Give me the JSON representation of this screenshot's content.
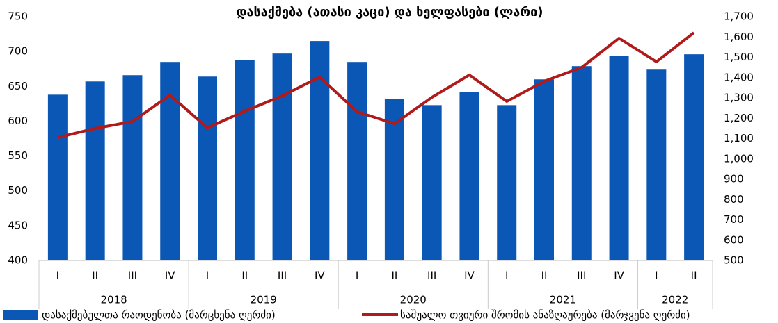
{
  "chart_data": {
    "type": "bar_line",
    "title": "დასაქმება (ათასი კაცი) და ხელფასები (ლარი)",
    "category_groups": [
      {
        "name": "2018",
        "categories": [
          "I",
          "II",
          "III",
          "IV"
        ]
      },
      {
        "name": "2019",
        "categories": [
          "I",
          "II",
          "III",
          "IV"
        ]
      },
      {
        "name": "2020",
        "categories": [
          "I",
          "II",
          "III",
          "IV"
        ]
      },
      {
        "name": "2021",
        "categories": [
          "I",
          "II",
          "III",
          "IV"
        ]
      },
      {
        "name": "2022",
        "categories": [
          "I",
          "II"
        ]
      }
    ],
    "series": [
      {
        "name": "დასაქმებულთა რაოდენობა (მარცხენა ღერძი)",
        "type": "bar",
        "color": "#0b57b5",
        "axis": "y",
        "values": [
          638,
          657,
          666,
          685,
          664,
          688,
          697,
          715,
          685,
          632,
          623,
          642,
          623,
          660,
          679,
          694,
          674,
          696
        ]
      },
      {
        "name": "საშუალო თვიური შრომის ანაზღაურება (მარჯვენა ღერძი)",
        "type": "line",
        "color": "#b01a1a",
        "axis": "y2",
        "values": [
          1105,
          1150,
          1184,
          1314,
          1153,
          1235,
          1310,
          1403,
          1232,
          1173,
          1303,
          1413,
          1283,
          1382,
          1450,
          1594,
          1478,
          1621
        ]
      }
    ],
    "ylim": [
      400,
      750
    ],
    "yticks": [
      400,
      450,
      500,
      550,
      600,
      650,
      700,
      750
    ],
    "y2lim": [
      500,
      1700
    ],
    "y2ticks": [
      500,
      600,
      700,
      800,
      900,
      {
        "value": 1000,
        "label": "1,000"
      },
      {
        "value": 1100,
        "label": "1,100"
      },
      {
        "value": 1200,
        "label": "1,200"
      },
      {
        "value": 1300,
        "label": "1,300"
      },
      {
        "value": 1400,
        "label": "1,400"
      },
      {
        "value": 1500,
        "label": "1,500"
      },
      {
        "value": 1600,
        "label": "1,600"
      },
      {
        "value": 1700,
        "label": "1,700"
      }
    ],
    "legend": "bottom"
  }
}
